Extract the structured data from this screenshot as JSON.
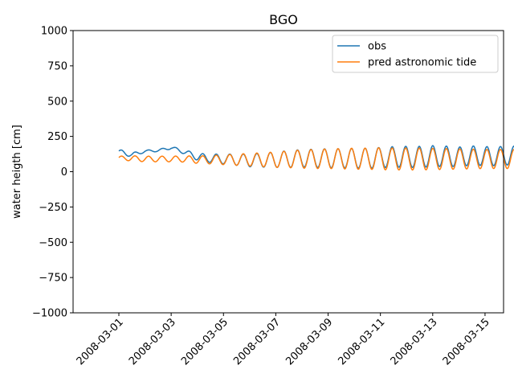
{
  "chart_data": {
    "type": "line",
    "title": "BGO",
    "xlabel": "",
    "ylabel": "water heigth [cm]",
    "xlim": [
      "2008-02-28T06:00",
      "2008-03-15T17:00"
    ],
    "ylim": [
      -1000,
      1000
    ],
    "xticks": [
      "2008-03-01",
      "2008-03-03",
      "2008-03-05",
      "2008-03-07",
      "2008-03-09",
      "2008-03-11",
      "2008-03-13",
      "2008-03-15"
    ],
    "yticks": [
      1000,
      750,
      500,
      250,
      0,
      -250,
      -500,
      -750,
      -1000
    ],
    "ytick_labels": [
      "1000",
      "750",
      "500",
      "250",
      "0",
      "−250",
      "−500",
      "−750",
      "−1000"
    ],
    "grid": false,
    "legend": {
      "position": "top-right"
    },
    "tidal_period_hours": 12.42,
    "series": [
      {
        "name": "obs",
        "color": "#1f77b4",
        "start": "2008-03-01T00:00",
        "step_days": 0.5,
        "mean": [
          140,
          120,
          145,
          150,
          170,
          140,
          105,
          95,
          90,
          85,
          80,
          82,
          85,
          90,
          95,
          95,
          95,
          95,
          95,
          95,
          100,
          105,
          105,
          105,
          110,
          110,
          105,
          115,
          110,
          110,
          115,
          120,
          115,
          110,
          110,
          100,
          100,
          95,
          90,
          90,
          85,
          85,
          85,
          85,
          85,
          85,
          85,
          85,
          85
        ],
        "amplitude": [
          18,
          15,
          8,
          8,
          10,
          15,
          25,
          30,
          35,
          40,
          45,
          50,
          55,
          60,
          62,
          65,
          68,
          68,
          70,
          72,
          72,
          73,
          75,
          75,
          75,
          72,
          70,
          68,
          68,
          68,
          66,
          64,
          62,
          60,
          58,
          56,
          55,
          53,
          50,
          48,
          45,
          42,
          40,
          38,
          36,
          34,
          32,
          30,
          28
        ],
        "end_value": 100
      },
      {
        "name": "pred astronomic tide",
        "color": "#ff7f0e",
        "start": "2008-03-01T00:00",
        "step_days": 0.5,
        "mean": [
          95,
          95,
          90,
          90,
          90,
          90,
          85,
          85,
          85,
          85,
          85,
          85,
          85,
          88,
          90,
          90,
          92,
          92,
          92,
          92,
          92,
          90,
          90,
          90,
          90,
          90,
          90,
          90,
          90,
          90,
          90,
          90,
          90,
          90,
          88,
          88,
          88,
          88,
          88,
          88,
          88,
          88,
          88,
          88,
          88,
          88,
          88,
          88,
          88
        ],
        "amplitude": [
          15,
          18,
          20,
          20,
          20,
          22,
          26,
          30,
          35,
          40,
          45,
          50,
          55,
          60,
          65,
          68,
          70,
          72,
          75,
          75,
          78,
          78,
          78,
          78,
          76,
          74,
          72,
          70,
          68,
          68,
          68,
          66,
          64,
          62,
          60,
          58,
          56,
          54,
          50,
          48,
          45,
          42,
          40,
          38,
          36,
          34,
          32,
          30,
          28
        ],
        "end_value": 80
      }
    ]
  }
}
